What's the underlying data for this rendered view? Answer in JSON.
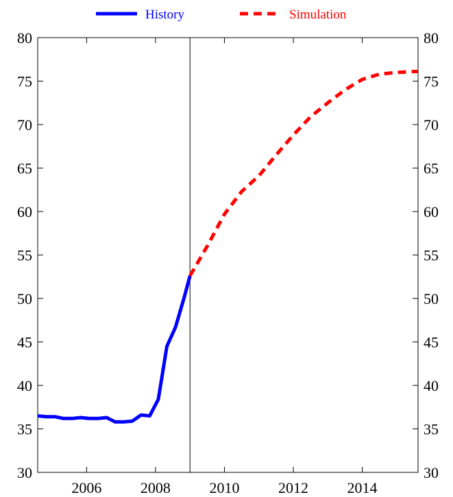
{
  "chart_data": {
    "type": "line",
    "xlim": [
      2004.58,
      2015.62
    ],
    "ylim": [
      30,
      80
    ],
    "y_ticks": [
      30,
      35,
      40,
      45,
      50,
      55,
      60,
      65,
      70,
      75,
      80
    ],
    "x_ticks": [
      2006,
      2008,
      2010,
      2012,
      2014
    ],
    "y_ticks_both_sides": true,
    "grid": false,
    "legend_position": "top-center",
    "reference_line_x": 2009.0,
    "series": [
      {
        "name": "History",
        "color": "#0000ff",
        "style": "solid",
        "x": [
          2004.58,
          2004.83,
          2005.08,
          2005.33,
          2005.58,
          2005.83,
          2006.08,
          2006.33,
          2006.58,
          2006.83,
          2007.08,
          2007.33,
          2007.58,
          2007.83,
          2008.08,
          2008.33,
          2008.58,
          2008.83,
          2009.0
        ],
        "y": [
          36.5,
          36.4,
          36.4,
          36.2,
          36.2,
          36.3,
          36.2,
          36.2,
          36.3,
          35.8,
          35.8,
          35.9,
          36.6,
          36.5,
          38.4,
          44.5,
          46.7,
          50.1,
          52.6
        ]
      },
      {
        "name": "Simulation",
        "color": "#ff0000",
        "style": "dashed",
        "x": [
          2009.0,
          2009.5,
          2010.0,
          2010.5,
          2011.0,
          2011.5,
          2012.0,
          2012.5,
          2013.0,
          2013.5,
          2014.0,
          2014.5,
          2015.0,
          2015.5,
          2015.62
        ],
        "y": [
          52.6,
          56.0,
          59.7,
          62.3,
          64.1,
          66.5,
          68.8,
          70.9,
          72.5,
          74.0,
          75.2,
          75.8,
          76.0,
          76.1,
          76.1
        ]
      }
    ]
  }
}
